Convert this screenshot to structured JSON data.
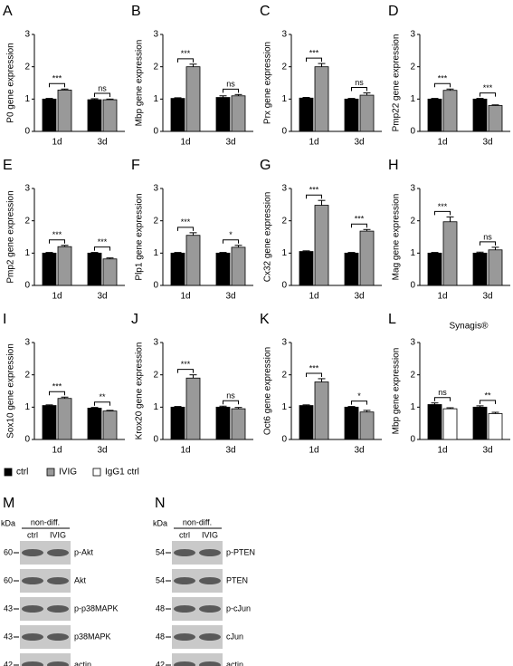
{
  "chart_data": [
    {
      "type": "bar",
      "panel": "A",
      "ylabel": "P0 gene expression",
      "categories": [
        "1d",
        "3d"
      ],
      "series": [
        {
          "name": "ctrl",
          "color": "#000000",
          "values": [
            1.0,
            0.98
          ],
          "errors": [
            0.02,
            0.03
          ]
        },
        {
          "name": "IVIG",
          "color": "#999999",
          "values": [
            1.28,
            0.98
          ],
          "errors": [
            0.03,
            0.02
          ]
        }
      ],
      "significance": [
        "***",
        "ns"
      ],
      "ylim": [
        0,
        3
      ],
      "yticks": [
        0,
        1,
        2,
        3
      ]
    },
    {
      "type": "bar",
      "panel": "B",
      "ylabel": "Mbp gene expression",
      "categories": [
        "1d",
        "3d"
      ],
      "series": [
        {
          "name": "ctrl",
          "color": "#000000",
          "values": [
            1.02,
            1.05
          ],
          "errors": [
            0.02,
            0.05
          ]
        },
        {
          "name": "IVIG",
          "color": "#999999",
          "values": [
            2.0,
            1.1
          ],
          "errors": [
            0.08,
            0.04
          ]
        }
      ],
      "significance": [
        "***",
        "ns"
      ],
      "ylim": [
        0,
        3
      ],
      "yticks": [
        0,
        1,
        2,
        3
      ]
    },
    {
      "type": "bar",
      "panel": "C",
      "ylabel": "Prx gene expression",
      "categories": [
        "1d",
        "3d"
      ],
      "series": [
        {
          "name": "ctrl",
          "color": "#000000",
          "values": [
            1.03,
            1.0
          ],
          "errors": [
            0.02,
            0.02
          ]
        },
        {
          "name": "IVIG",
          "color": "#999999",
          "values": [
            2.0,
            1.12
          ],
          "errors": [
            0.1,
            0.07
          ]
        }
      ],
      "significance": [
        "***",
        "ns"
      ],
      "ylim": [
        0,
        3
      ],
      "yticks": [
        0,
        1,
        2,
        3
      ]
    },
    {
      "type": "bar",
      "panel": "D",
      "ylabel": "Pmp22 gene expression",
      "categories": [
        "1d",
        "3d"
      ],
      "series": [
        {
          "name": "ctrl",
          "color": "#000000",
          "values": [
            1.0,
            1.0
          ],
          "errors": [
            0.02,
            0.02
          ]
        },
        {
          "name": "IVIG",
          "color": "#999999",
          "values": [
            1.27,
            0.8
          ],
          "errors": [
            0.04,
            0.02
          ]
        }
      ],
      "significance": [
        "***",
        "***"
      ],
      "ylim": [
        0,
        3
      ],
      "yticks": [
        0,
        1,
        2,
        3
      ]
    },
    {
      "type": "bar",
      "panel": "E",
      "ylabel": "Pmp2 gene expression",
      "categories": [
        "1d",
        "3d"
      ],
      "series": [
        {
          "name": "ctrl",
          "color": "#000000",
          "values": [
            1.0,
            1.0
          ],
          "errors": [
            0.02,
            0.02
          ]
        },
        {
          "name": "IVIG",
          "color": "#999999",
          "values": [
            1.2,
            0.82
          ],
          "errors": [
            0.04,
            0.03
          ]
        }
      ],
      "significance": [
        "***",
        "***"
      ],
      "ylim": [
        0,
        3
      ],
      "yticks": [
        0,
        1,
        2,
        3
      ]
    },
    {
      "type": "bar",
      "panel": "F",
      "ylabel": "Plp1 gene expression",
      "categories": [
        "1d",
        "3d"
      ],
      "series": [
        {
          "name": "ctrl",
          "color": "#000000",
          "values": [
            1.0,
            1.0
          ],
          "errors": [
            0.02,
            0.02
          ]
        },
        {
          "name": "IVIG",
          "color": "#999999",
          "values": [
            1.55,
            1.18
          ],
          "errors": [
            0.08,
            0.06
          ]
        }
      ],
      "significance": [
        "***",
        "*"
      ],
      "ylim": [
        0,
        3
      ],
      "yticks": [
        0,
        1,
        2,
        3
      ]
    },
    {
      "type": "bar",
      "panel": "G",
      "ylabel": "Cx32 gene expression",
      "categories": [
        "1d",
        "3d"
      ],
      "series": [
        {
          "name": "ctrl",
          "color": "#000000",
          "values": [
            1.05,
            1.0
          ],
          "errors": [
            0.02,
            0.02
          ]
        },
        {
          "name": "IVIG",
          "color": "#999999",
          "values": [
            2.48,
            1.68
          ],
          "errors": [
            0.15,
            0.05
          ]
        }
      ],
      "significance": [
        "***",
        "***"
      ],
      "ylim": [
        0,
        3
      ],
      "yticks": [
        0,
        1,
        2,
        3
      ]
    },
    {
      "type": "bar",
      "panel": "H",
      "ylabel": "Mag gene expression",
      "categories": [
        "1d",
        "3d"
      ],
      "series": [
        {
          "name": "ctrl",
          "color": "#000000",
          "values": [
            1.0,
            1.0
          ],
          "errors": [
            0.02,
            0.03
          ]
        },
        {
          "name": "IVIG",
          "color": "#999999",
          "values": [
            1.97,
            1.1
          ],
          "errors": [
            0.15,
            0.08
          ]
        }
      ],
      "significance": [
        "***",
        "ns"
      ],
      "ylim": [
        0,
        3
      ],
      "yticks": [
        0,
        1,
        2,
        3
      ]
    },
    {
      "type": "bar",
      "panel": "I",
      "ylabel": "Sox10 gene expression",
      "categories": [
        "1d",
        "3d"
      ],
      "series": [
        {
          "name": "ctrl",
          "color": "#000000",
          "values": [
            1.05,
            0.97
          ],
          "errors": [
            0.02,
            0.02
          ]
        },
        {
          "name": "IVIG",
          "color": "#999999",
          "values": [
            1.27,
            0.88
          ],
          "errors": [
            0.04,
            0.02
          ]
        }
      ],
      "significance": [
        "***",
        "**"
      ],
      "ylim": [
        0,
        3
      ],
      "yticks": [
        0,
        1,
        2,
        3
      ]
    },
    {
      "type": "bar",
      "panel": "J",
      "ylabel": "Krox20 gene expression",
      "categories": [
        "1d",
        "3d"
      ],
      "series": [
        {
          "name": "ctrl",
          "color": "#000000",
          "values": [
            1.0,
            1.0
          ],
          "errors": [
            0.02,
            0.03
          ]
        },
        {
          "name": "IVIG",
          "color": "#999999",
          "values": [
            1.9,
            0.95
          ],
          "errors": [
            0.1,
            0.04
          ]
        }
      ],
      "significance": [
        "***",
        "ns"
      ],
      "ylim": [
        0,
        3
      ],
      "yticks": [
        0,
        1,
        2,
        3
      ]
    },
    {
      "type": "bar",
      "panel": "K",
      "ylabel": "Oct6 gene expression",
      "categories": [
        "1d",
        "3d"
      ],
      "series": [
        {
          "name": "ctrl",
          "color": "#000000",
          "values": [
            1.05,
            1.0
          ],
          "errors": [
            0.02,
            0.02
          ]
        },
        {
          "name": "IVIG",
          "color": "#999999",
          "values": [
            1.78,
            0.85
          ],
          "errors": [
            0.1,
            0.05
          ]
        }
      ],
      "significance": [
        "***",
        "*"
      ],
      "ylim": [
        0,
        3
      ],
      "yticks": [
        0,
        1,
        2,
        3
      ]
    },
    {
      "type": "bar",
      "panel": "L",
      "title": "Synagis®",
      "ylabel": "Mbp gene expression",
      "categories": [
        "1d",
        "3d"
      ],
      "series": [
        {
          "name": "ctrl",
          "color": "#000000",
          "values": [
            1.08,
            1.0
          ],
          "errors": [
            0.05,
            0.04
          ]
        },
        {
          "name": "IgG1 ctrl",
          "color": "#ffffff",
          "values": [
            0.95,
            0.8
          ],
          "errors": [
            0.03,
            0.04
          ]
        }
      ],
      "significance": [
        "ns",
        "**"
      ],
      "ylim": [
        0,
        3
      ],
      "yticks": [
        0,
        1,
        2,
        3
      ]
    }
  ],
  "blots": [
    {
      "panel": "M",
      "unit": "kDa",
      "group": "non-diff.",
      "lanes": [
        "ctrl",
        "IVIG"
      ],
      "rows": [
        {
          "kda": 60,
          "label": "p-Akt"
        },
        {
          "kda": 60,
          "label": "Akt"
        },
        {
          "kda": 43,
          "label": "p-p38MAPK"
        },
        {
          "kda": 43,
          "label": "p38MAPK"
        },
        {
          "kda": 42,
          "label": "actin"
        }
      ]
    },
    {
      "panel": "N",
      "unit": "kDa",
      "group": "non-diff.",
      "lanes": [
        "ctrl",
        "IVIG"
      ],
      "rows": [
        {
          "kda": 54,
          "label": "p-PTEN"
        },
        {
          "kda": 54,
          "label": "PTEN"
        },
        {
          "kda": 48,
          "label": "p-cJun"
        },
        {
          "kda": 48,
          "label": "cJun"
        },
        {
          "kda": 42,
          "label": "actin"
        }
      ]
    }
  ]
}
